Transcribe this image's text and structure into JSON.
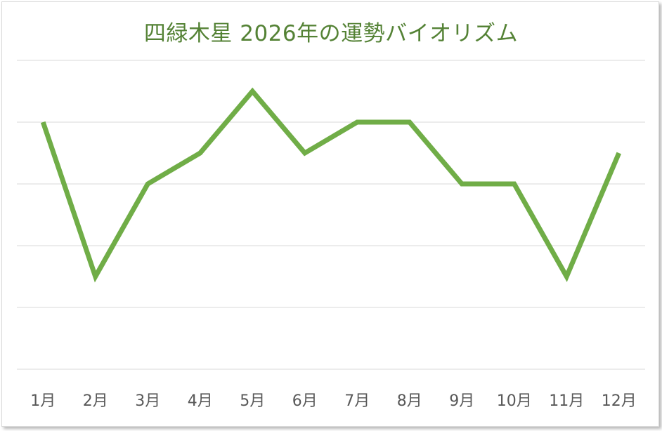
{
  "chart_data": {
    "type": "line",
    "title": "四緑木星 2026年の運勢バイオリズム",
    "xlabel": "",
    "ylabel": "",
    "categories": [
      "1月",
      "2月",
      "3月",
      "4月",
      "5月",
      "6月",
      "7月",
      "8月",
      "9月",
      "10月",
      "11月",
      "12月"
    ],
    "series": [
      {
        "values": [
          4,
          1.5,
          3,
          3.5,
          4.5,
          3.5,
          4,
          4,
          3,
          3,
          1.5,
          3.5
        ]
      }
    ],
    "ylim": [
      0,
      5
    ],
    "y_gridlines": [
      0,
      1,
      2,
      3,
      4,
      5
    ],
    "y_tick_labels_shown": false,
    "grid": true,
    "legend": "none",
    "colors": {
      "line": "#70ad47",
      "title": "#548235",
      "grid": "#d9d9d9",
      "tick_label": "#595959"
    }
  }
}
